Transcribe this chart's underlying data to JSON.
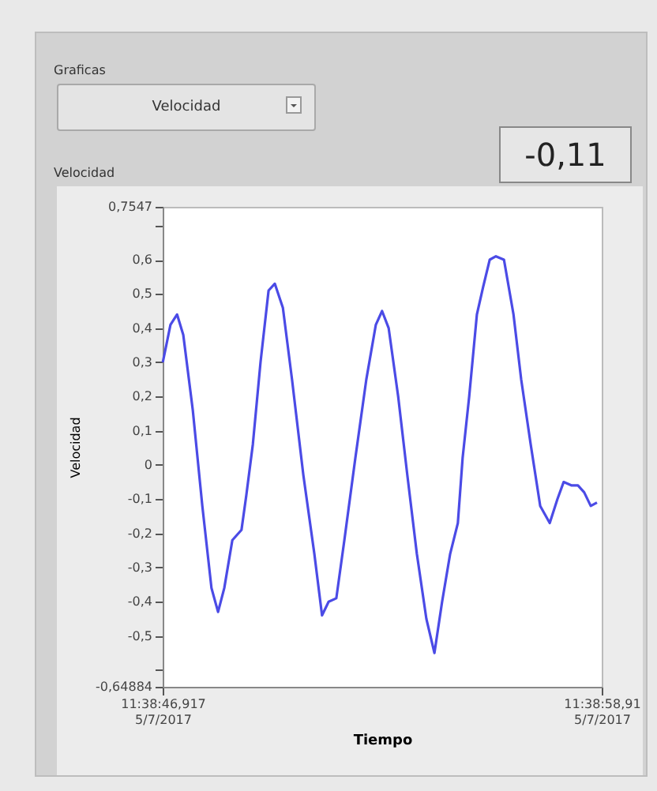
{
  "chart_data": {
    "type": "line",
    "title": "Velocidad",
    "ylabel": "Velocidad",
    "xlabel": "Tiempo",
    "annotations": [
      "Graficas",
      "Velocidad",
      "-0,11"
    ],
    "x": [
      "2017-07-05T11:38:46.92",
      "2017-07-05T11:38:47.13",
      "2017-07-05T11:38:47.31",
      "2017-07-05T11:38:47.48",
      "2017-07-05T11:38:47.74",
      "2017-07-05T11:38:48.00",
      "2017-07-05T11:38:48.25",
      "2017-07-05T11:38:48.43",
      "2017-07-05T11:38:48.60",
      "2017-07-05T11:38:48.82",
      "2017-07-05T11:38:49.07",
      "2017-07-05T11:38:49.20",
      "2017-07-05T11:38:49.38",
      "2017-07-05T11:38:49.59",
      "2017-07-05T11:38:49.81",
      "2017-07-05T11:38:49.98",
      "2017-07-05T11:38:50.20",
      "2017-07-05T11:38:50.45",
      "2017-07-05T11:38:50.76",
      "2017-07-05T11:38:51.06",
      "2017-07-05T11:38:51.27",
      "2017-07-05T11:38:51.45",
      "2017-07-05T11:38:51.66",
      "2017-07-05T11:38:51.88",
      "2017-07-05T11:38:52.18",
      "2017-07-05T11:38:52.48",
      "2017-07-05T11:38:52.74",
      "2017-07-05T11:38:52.91",
      "2017-07-05T11:38:53.09",
      "2017-07-05T11:38:53.35",
      "2017-07-05T11:38:53.60",
      "2017-07-05T11:38:53.86",
      "2017-07-05T11:38:54.12",
      "2017-07-05T11:38:54.34",
      "2017-07-05T11:38:54.55",
      "2017-07-05T11:38:54.77",
      "2017-07-05T11:38:54.98",
      "2017-07-05T11:38:55.11",
      "2017-07-05T11:38:55.29",
      "2017-07-05T11:38:55.50",
      "2017-07-05T11:38:55.67",
      "2017-07-05T11:38:55.85",
      "2017-07-05T11:38:56.02",
      "2017-07-05T11:38:56.24",
      "2017-07-05T11:38:56.50",
      "2017-07-05T11:38:56.71",
      "2017-07-05T11:38:56.97",
      "2017-07-05T11:38:57.23",
      "2017-07-05T11:38:57.49",
      "2017-07-05T11:38:57.70",
      "2017-07-05T11:38:57.87",
      "2017-07-05T11:38:58.09",
      "2017-07-05T11:38:58.26",
      "2017-07-05T11:38:58.43",
      "2017-07-05T11:38:58.61",
      "2017-07-05T11:38:58.78"
    ],
    "series": [
      {
        "color": "#4b4be6",
        "values": [
          0.3,
          0.41,
          0.44,
          0.38,
          0.16,
          -0.12,
          -0.36,
          -0.43,
          -0.36,
          -0.22,
          -0.19,
          -0.09,
          0.06,
          0.3,
          0.51,
          0.53,
          0.46,
          0.25,
          -0.03,
          -0.26,
          -0.44,
          -0.4,
          -0.39,
          -0.22,
          0.02,
          0.25,
          0.41,
          0.45,
          0.4,
          0.2,
          -0.03,
          -0.26,
          -0.45,
          -0.55,
          -0.4,
          -0.26,
          -0.17,
          0.02,
          0.2,
          0.44,
          0.52,
          0.6,
          0.61,
          0.6,
          0.44,
          0.25,
          0.06,
          -0.12,
          -0.17,
          -0.1,
          -0.05,
          -0.06,
          -0.06,
          -0.08,
          -0.12,
          -0.11
        ]
      }
    ],
    "xlim": [
      "2017-07-05T11:38:46.917",
      "2017-07-05T11:38:58.91"
    ],
    "xticks": [
      {
        "value": "2017-07-05T11:38:46.917",
        "label": "11:38:46,917\n5/7/2017"
      },
      {
        "value": "2017-07-05T11:38:58.91",
        "label": "11:38:58,91\n5/7/2017"
      }
    ],
    "ylim": [
      -0.64884,
      0.7547
    ],
    "yticks": [
      {
        "value": -0.64884,
        "label": "-0,64884"
      },
      {
        "value": -0.6,
        "label": null
      },
      {
        "value": -0.5,
        "label": "-0,5"
      },
      {
        "value": -0.4,
        "label": "-0,4"
      },
      {
        "value": -0.3,
        "label": "-0,3"
      },
      {
        "value": -0.2,
        "label": "-0,2"
      },
      {
        "value": -0.1,
        "label": "-0,1"
      },
      {
        "value": 0,
        "label": "0"
      },
      {
        "value": 0.1,
        "label": "0,1"
      },
      {
        "value": 0.2,
        "label": "0,2"
      },
      {
        "value": 0.3,
        "label": "0,3"
      },
      {
        "value": 0.4,
        "label": "0,4"
      },
      {
        "value": 0.5,
        "label": "0,5"
      },
      {
        "value": 0.6,
        "label": "0,6"
      },
      {
        "value": 0.7,
        "label": null
      },
      {
        "value": 0.7547,
        "label": "0,7547"
      }
    ],
    "grid": false,
    "marker": "none",
    "line_style": "solid"
  }
}
